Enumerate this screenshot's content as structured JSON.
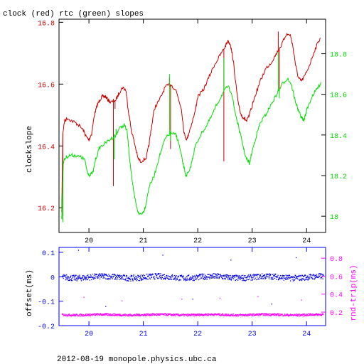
{
  "title": "clock (red) rtc (green) slopes",
  "footer": "2012-08-19 monopole.physics.ubc.ca",
  "colors": {
    "red": "#cc0000",
    "green": "#00dd00",
    "blue": "#0000ee",
    "magenta": "#ff00ff",
    "axis": "#000000"
  },
  "chart_data": [
    {
      "type": "line",
      "title": "clock (red) rtc (green) slopes",
      "ylabel": "clockslope",
      "xlim": [
        19.45,
        24.35
      ],
      "ylim_left": [
        16.12,
        16.81
      ],
      "ylim_right": [
        17.92,
        18.97
      ],
      "x_ticks": [
        "20",
        "21",
        "22",
        "23",
        "24"
      ],
      "y_ticks_left": [
        "16.2",
        "16.4",
        "16.6",
        "16.8"
      ],
      "y_ticks_right": [
        "18",
        "18.2",
        "18.4",
        "18.6",
        "18.8"
      ],
      "grid": false,
      "series": [
        {
          "name": "clock",
          "color": "#cc0000",
          "axis": "left",
          "points": [
            [
              19.5,
              16.18
            ],
            [
              19.52,
              16.44
            ],
            [
              19.55,
              16.48
            ],
            [
              19.6,
              16.49
            ],
            [
              19.7,
              16.48
            ],
            [
              19.8,
              16.47
            ],
            [
              19.9,
              16.45
            ],
            [
              19.95,
              16.43
            ],
            [
              20.0,
              16.42
            ],
            [
              20.05,
              16.44
            ],
            [
              20.1,
              16.5
            ],
            [
              20.15,
              16.53
            ],
            [
              20.2,
              16.55
            ],
            [
              20.25,
              16.56
            ],
            [
              20.3,
              16.56
            ],
            [
              20.35,
              16.55
            ],
            [
              20.4,
              16.54
            ],
            [
              20.5,
              16.55
            ],
            [
              20.55,
              16.57
            ],
            [
              20.62,
              16.59
            ],
            [
              20.68,
              16.58
            ],
            [
              20.72,
              16.52
            ],
            [
              20.78,
              16.45
            ],
            [
              20.85,
              16.4
            ],
            [
              20.9,
              16.36
            ],
            [
              20.95,
              16.35
            ],
            [
              21.05,
              16.36
            ],
            [
              21.1,
              16.4
            ],
            [
              21.15,
              16.46
            ],
            [
              21.2,
              16.52
            ],
            [
              21.3,
              16.55
            ],
            [
              21.4,
              16.59
            ],
            [
              21.5,
              16.6
            ],
            [
              21.6,
              16.58
            ],
            [
              21.7,
              16.52
            ],
            [
              21.75,
              16.44
            ],
            [
              21.8,
              16.42
            ],
            [
              21.85,
              16.45
            ],
            [
              21.95,
              16.51
            ],
            [
              22.0,
              16.56
            ],
            [
              22.1,
              16.58
            ],
            [
              22.2,
              16.62
            ],
            [
              22.3,
              16.66
            ],
            [
              22.4,
              16.69
            ],
            [
              22.5,
              16.72
            ],
            [
              22.55,
              16.74
            ],
            [
              22.6,
              16.73
            ],
            [
              22.65,
              16.68
            ],
            [
              22.7,
              16.6
            ],
            [
              22.75,
              16.53
            ],
            [
              22.8,
              16.5
            ],
            [
              22.85,
              16.49
            ],
            [
              22.9,
              16.48
            ],
            [
              22.95,
              16.5
            ],
            [
              23.05,
              16.56
            ],
            [
              23.15,
              16.61
            ],
            [
              23.25,
              16.65
            ],
            [
              23.35,
              16.67
            ],
            [
              23.45,
              16.7
            ],
            [
              23.55,
              16.73
            ],
            [
              23.62,
              16.76
            ],
            [
              23.7,
              16.76
            ],
            [
              23.75,
              16.72
            ],
            [
              23.8,
              16.66
            ],
            [
              23.85,
              16.62
            ],
            [
              23.9,
              16.61
            ],
            [
              23.95,
              16.62
            ],
            [
              24.05,
              16.66
            ],
            [
              24.15,
              16.71
            ],
            [
              24.25,
              16.75
            ]
          ],
          "spikes": [
            [
              19.52,
              16.16
            ],
            [
              20.45,
              16.27
            ],
            [
              20.48,
              16.52
            ],
            [
              21.48,
              16.62
            ],
            [
              21.5,
              16.39
            ],
            [
              22.48,
              16.35
            ],
            [
              22.5,
              16.72
            ],
            [
              23.48,
              16.77
            ],
            [
              23.5,
              16.57
            ]
          ]
        },
        {
          "name": "rtc",
          "color": "#00dd00",
          "axis": "right",
          "points": [
            [
              19.5,
              17.99
            ],
            [
              19.53,
              18.27
            ],
            [
              19.58,
              18.29
            ],
            [
              19.65,
              18.3
            ],
            [
              19.75,
              18.3
            ],
            [
              19.85,
              18.29
            ],
            [
              19.92,
              18.28
            ],
            [
              19.97,
              18.22
            ],
            [
              20.02,
              18.2
            ],
            [
              20.08,
              18.22
            ],
            [
              20.12,
              18.28
            ],
            [
              20.2,
              18.34
            ],
            [
              20.3,
              18.36
            ],
            [
              20.4,
              18.38
            ],
            [
              20.5,
              18.4
            ],
            [
              20.55,
              18.43
            ],
            [
              20.65,
              18.45
            ],
            [
              20.7,
              18.42
            ],
            [
              20.75,
              18.28
            ],
            [
              20.82,
              18.12
            ],
            [
              20.88,
              18.04
            ],
            [
              20.92,
              18.01
            ],
            [
              21.0,
              18.02
            ],
            [
              21.05,
              18.06
            ],
            [
              21.1,
              18.14
            ],
            [
              21.2,
              18.2
            ],
            [
              21.3,
              18.3
            ],
            [
              21.4,
              18.38
            ],
            [
              21.5,
              18.41
            ],
            [
              21.6,
              18.4
            ],
            [
              21.65,
              18.36
            ],
            [
              21.72,
              18.27
            ],
            [
              21.78,
              18.2
            ],
            [
              21.85,
              18.22
            ],
            [
              21.9,
              18.28
            ],
            [
              21.95,
              18.34
            ],
            [
              22.05,
              18.4
            ],
            [
              22.15,
              18.44
            ],
            [
              22.25,
              18.49
            ],
            [
              22.35,
              18.55
            ],
            [
              22.45,
              18.6
            ],
            [
              22.55,
              18.64
            ],
            [
              22.62,
              18.61
            ],
            [
              22.68,
              18.52
            ],
            [
              22.75,
              18.44
            ],
            [
              22.82,
              18.36
            ],
            [
              22.88,
              18.29
            ],
            [
              22.95,
              18.26
            ],
            [
              23.0,
              18.32
            ],
            [
              23.08,
              18.4
            ],
            [
              23.15,
              18.46
            ],
            [
              23.25,
              18.5
            ],
            [
              23.35,
              18.55
            ],
            [
              23.45,
              18.6
            ],
            [
              23.55,
              18.65
            ],
            [
              23.65,
              18.68
            ],
            [
              23.72,
              18.65
            ],
            [
              23.78,
              18.58
            ],
            [
              23.85,
              18.52
            ],
            [
              23.9,
              18.49
            ],
            [
              23.95,
              18.47
            ],
            [
              24.0,
              18.52
            ],
            [
              24.1,
              18.59
            ],
            [
              24.2,
              18.63
            ],
            [
              24.27,
              18.66
            ]
          ],
          "spikes": [
            [
              19.52,
              17.97
            ],
            [
              20.47,
              18.28
            ],
            [
              20.5,
              18.43
            ],
            [
              21.48,
              18.7
            ],
            [
              21.5,
              18.37
            ],
            [
              22.48,
              18.78
            ],
            [
              22.5,
              18.62
            ],
            [
              23.48,
              18.81
            ],
            [
              23.5,
              18.58
            ]
          ]
        }
      ]
    },
    {
      "type": "scatter",
      "ylabel_left": "offset(ms)",
      "ylabel_right": "rnd-trip(ms)",
      "xlim": [
        19.45,
        24.35
      ],
      "ylim_left": [
        -0.2,
        0.12
      ],
      "ylim_right": [
        0.05,
        0.92
      ],
      "x_ticks": [
        "20",
        "21",
        "22",
        "23",
        "24"
      ],
      "y_ticks_left": [
        "0.1",
        "0",
        "-0.1",
        "-0.2"
      ],
      "y_ticks_right": [
        "0.8",
        "0.6",
        "0.4",
        "0.2"
      ],
      "grid": false,
      "series": [
        {
          "name": "offset",
          "color": "#0000ee",
          "axis": "left",
          "x_range": [
            19.5,
            24.3
          ],
          "center": 0.0,
          "spread": 0.012,
          "outliers": [
            [
              19.8,
              0.11
            ],
            [
              20.3,
              -0.12
            ],
            [
              21.35,
              0.09
            ],
            [
              21.9,
              -0.09
            ],
            [
              22.6,
              0.07
            ],
            [
              23.35,
              -0.11
            ],
            [
              23.8,
              0.08
            ]
          ]
        },
        {
          "name": "rnd-trip",
          "color": "#ff00ff",
          "axis": "right",
          "x_range": [
            19.5,
            24.3
          ],
          "center": 0.175,
          "spread": 0.012,
          "outliers": [
            [
              19.9,
              0.37
            ],
            [
              20.6,
              0.33
            ],
            [
              21.7,
              0.35
            ],
            [
              22.4,
              0.36
            ],
            [
              23.1,
              0.38
            ],
            [
              23.9,
              0.34
            ]
          ]
        }
      ]
    }
  ]
}
